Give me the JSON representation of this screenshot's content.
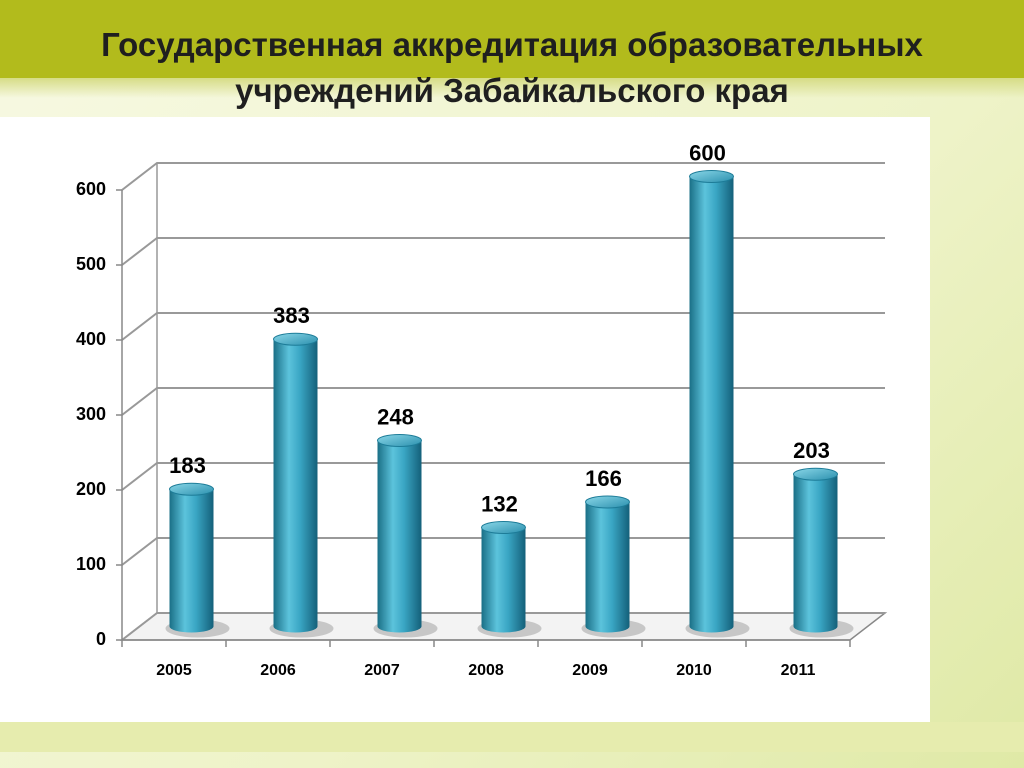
{
  "chart_data": {
    "type": "bar",
    "title": "Государственная аккредитация образовательных учреждений Забайкальского края",
    "categories": [
      "2005",
      "2006",
      "2007",
      "2008",
      "2009",
      "2010",
      "2011"
    ],
    "values": [
      183,
      383,
      248,
      132,
      166,
      600,
      203
    ],
    "color": "#3aa6c4",
    "ylim": [
      0,
      600
    ],
    "yticks": [
      0,
      100,
      200,
      300,
      400,
      500,
      600
    ],
    "grid": true
  }
}
